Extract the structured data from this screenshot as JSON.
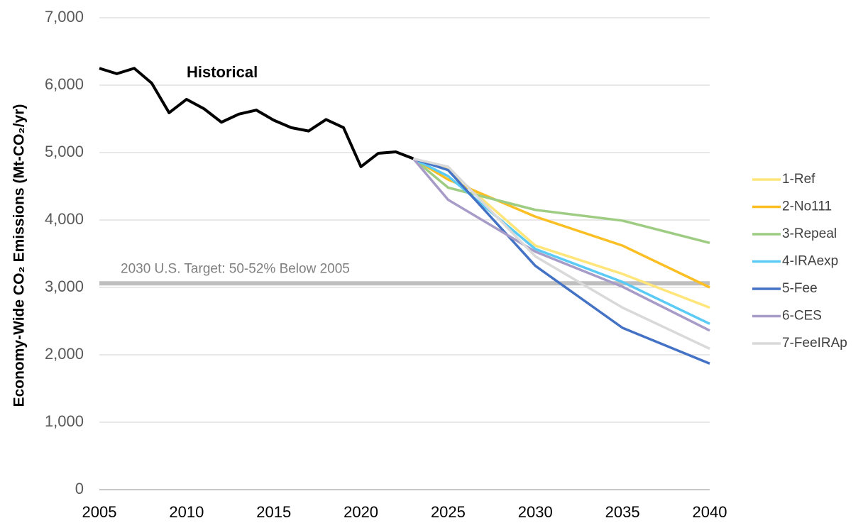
{
  "chart_data": {
    "type": "line",
    "ylabel": "Economy-Wide CO₂ Emissions (Mt-CO₂/yr)",
    "xlim": [
      2005,
      2040
    ],
    "xticks": [
      2005,
      2010,
      2015,
      2020,
      2025,
      2030,
      2035,
      2040
    ],
    "ylim": [
      0,
      7000
    ],
    "yticks": [
      0,
      {
        "value": 1000,
        "label": "1,000"
      },
      {
        "value": 2000,
        "label": "2,000"
      },
      {
        "value": 3000,
        "label": "3,000"
      },
      {
        "value": 4000,
        "label": "4,000"
      },
      {
        "value": 5000,
        "label": "5,000"
      },
      {
        "value": 6000,
        "label": "6,000"
      },
      {
        "value": 7000,
        "label": "7,000"
      }
    ],
    "grid": true,
    "legend": "right",
    "target": {
      "value": 3060,
      "label": "2030 U.S. Target: 50-52% Below 2005",
      "color": "#bfbfbf"
    },
    "historical": {
      "name": "Historical",
      "color": "#000000",
      "x": [
        2005,
        2006,
        2007,
        2008,
        2009,
        2010,
        2011,
        2012,
        2013,
        2014,
        2015,
        2016,
        2017,
        2018,
        2019,
        2020,
        2021,
        2022,
        2023
      ],
      "values": [
        6250,
        6170,
        6250,
        6030,
        5590,
        5790,
        5650,
        5450,
        5570,
        5630,
        5480,
        5370,
        5320,
        5490,
        5370,
        4790,
        4990,
        5010,
        4910
      ]
    },
    "series": [
      {
        "name": "1-Ref",
        "color": "#ffe57a",
        "x": [
          2023,
          2025,
          2030,
          2035,
          2040
        ],
        "values": [
          4910,
          4750,
          3620,
          3200,
          2700
        ]
      },
      {
        "name": "2-No111",
        "color": "#fbbf24",
        "x": [
          2023,
          2025,
          2030,
          2035,
          2040
        ],
        "values": [
          4910,
          4600,
          4050,
          3620,
          3000
        ]
      },
      {
        "name": "3-Repeal",
        "color": "#9dcc82",
        "x": [
          2023,
          2025,
          2030,
          2035,
          2040
        ],
        "values": [
          4910,
          4480,
          4150,
          3990,
          3660
        ]
      },
      {
        "name": "4-IRAexp",
        "color": "#5bcbf5",
        "x": [
          2023,
          2025,
          2030,
          2035,
          2040
        ],
        "values": [
          4910,
          4650,
          3570,
          3080,
          2460
        ]
      },
      {
        "name": "5-Fee",
        "color": "#4472c4",
        "x": [
          2023,
          2025,
          2030,
          2035,
          2040
        ],
        "values": [
          4910,
          4740,
          3320,
          2400,
          1870
        ]
      },
      {
        "name": "6-CES",
        "color": "#a79bc8",
        "x": [
          2023,
          2025,
          2030,
          2035,
          2040
        ],
        "values": [
          4910,
          4300,
          3530,
          3010,
          2360
        ]
      },
      {
        "name": "7-FeeIRAp",
        "color": "#d9d9d9",
        "x": [
          2023,
          2025,
          2030,
          2035,
          2040
        ],
        "values": [
          4910,
          4790,
          3460,
          2700,
          2090
        ]
      }
    ]
  }
}
